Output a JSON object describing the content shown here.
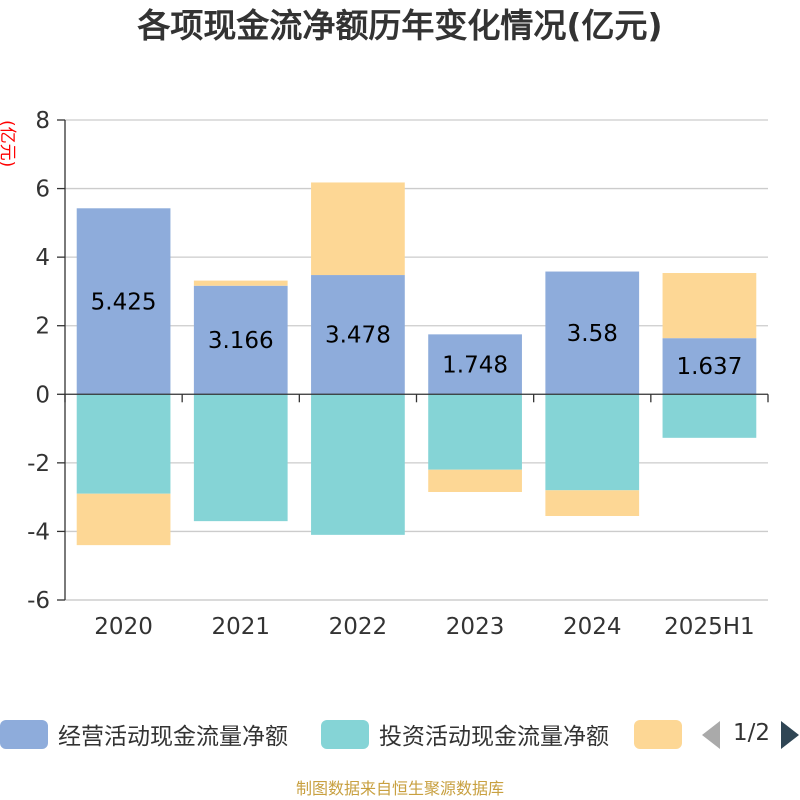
{
  "title": "各项现金流净额历年变化情况(亿元)",
  "chart_data": {
    "type": "bar",
    "stacked": true,
    "title": "各项现金流净额历年变化情况(亿元)",
    "y_unit": "(亿元)",
    "xlabel": "",
    "ylabel": "",
    "categories": [
      "2020",
      "2021",
      "2022",
      "2023",
      "2024",
      "2025H1"
    ],
    "ylim": [
      -6,
      8
    ],
    "yticks": [
      8,
      6,
      4,
      2,
      0,
      -2,
      -4,
      -6
    ],
    "grid": true,
    "legend_position": "bottom",
    "series": [
      {
        "name": "经营活动现金流量净额",
        "color": "#8eacdb",
        "values": [
          5.425,
          3.166,
          3.478,
          1.748,
          3.58,
          1.637
        ],
        "labels": [
          "5.425",
          "3.166",
          "3.478",
          "1.748",
          "3.58",
          "1.637"
        ]
      },
      {
        "name": "投资活动现金流量净额",
        "color": "#85d4d6",
        "values": [
          -2.9,
          -3.7,
          -4.1,
          -2.2,
          -2.8,
          -1.27
        ]
      },
      {
        "name": "",
        "color": "#fdd795",
        "values": [
          -1.5,
          0.15,
          2.7,
          -0.65,
          -0.75,
          1.9
        ]
      }
    ]
  },
  "legend": {
    "items": [
      {
        "label": "经营活动现金流量净额",
        "color": "#8eacdb"
      },
      {
        "label": "投资活动现金流量净额",
        "color": "#85d4d6"
      },
      {
        "label": "",
        "color": "#fdd795"
      }
    ],
    "pager": "1/2",
    "prev_icon": "triangle-left-icon",
    "next_icon": "triangle-right-icon",
    "prev_color": "#aaaaaa",
    "next_color": "#2f4554"
  },
  "source": "制图数据来自恒生聚源数据库"
}
